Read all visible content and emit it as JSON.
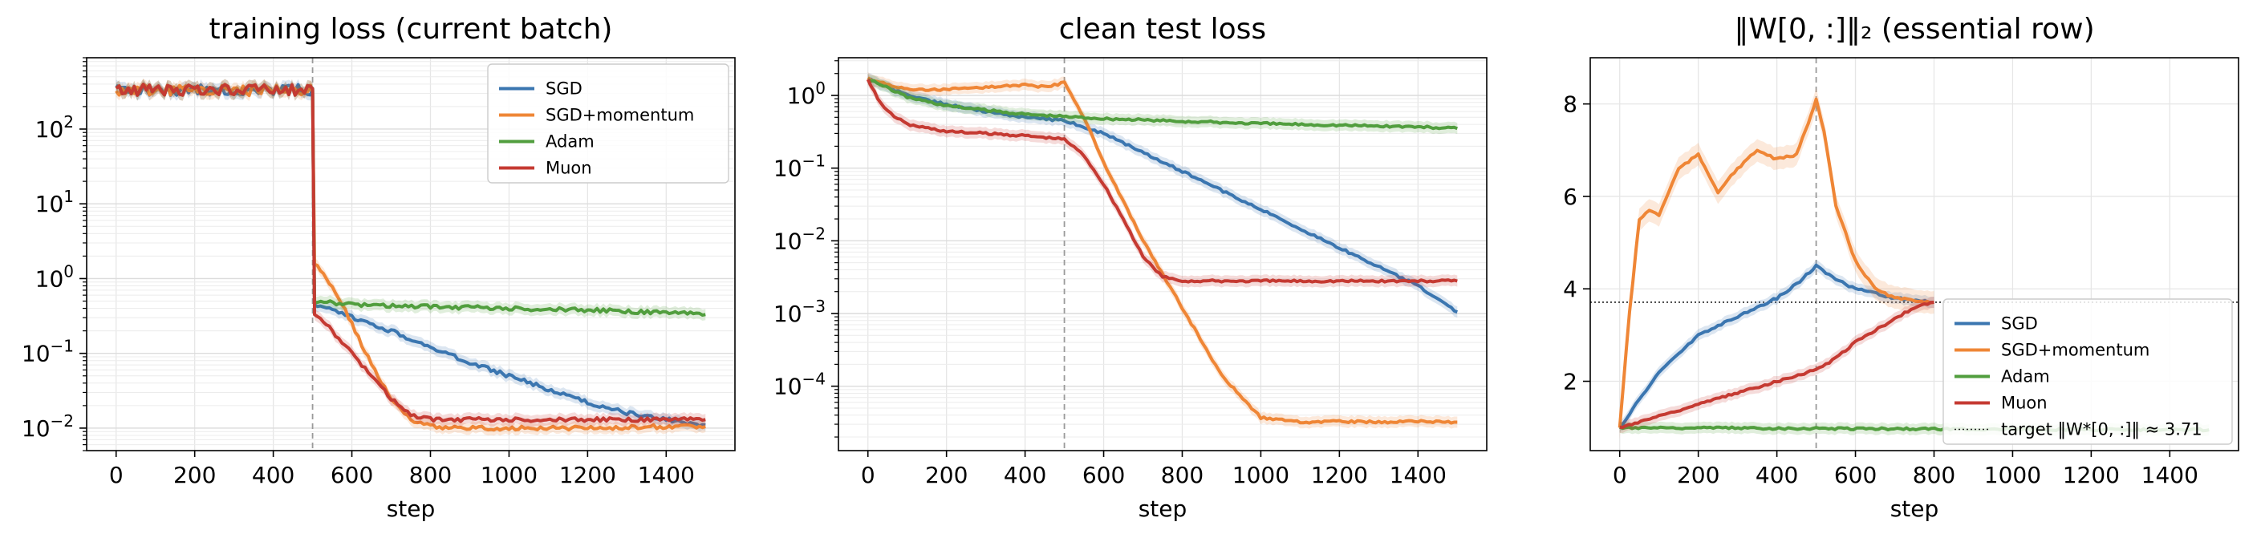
{
  "colors": {
    "SGD": "#3b76b0",
    "SGD+momentum": "#ef8636",
    "Adam": "#519e3e",
    "Muon": "#c53a32"
  },
  "chart_data": [
    {
      "type": "line",
      "title": "training loss (current batch)",
      "xlabel": "step",
      "ylabel": "",
      "yscale": "log",
      "xlim": [
        -75,
        1575
      ],
      "ylim": [
        0.005,
        900
      ],
      "xticks": [
        "0",
        "200",
        "400",
        "600",
        "800",
        "1000",
        "1200",
        "1400"
      ],
      "yticks": [
        {
          "v": 100,
          "base": "10",
          "exp": "2"
        },
        {
          "v": 10,
          "base": "10",
          "exp": "1"
        },
        {
          "v": 1,
          "base": "10",
          "exp": "0"
        },
        {
          "v": 0.1,
          "base": "10",
          "exp": "−1"
        },
        {
          "v": 0.01,
          "base": "10",
          "exp": "−2"
        }
      ],
      "vline": 500,
      "grid": true,
      "legend": {
        "position": "top-right",
        "entries": [
          "SGD",
          "SGD+momentum",
          "Adam",
          "Muon"
        ]
      },
      "series": [
        {
          "name": "SGD",
          "x": [
            0,
            100,
            200,
            300,
            400,
            495,
            500,
            505,
            550,
            600,
            700,
            800,
            900,
            1000,
            1100,
            1200,
            1300,
            1400,
            1500
          ],
          "y": [
            330,
            340,
            330,
            335,
            330,
            330,
            330,
            0.42,
            0.38,
            0.3,
            0.2,
            0.12,
            0.075,
            0.05,
            0.033,
            0.022,
            0.016,
            0.013,
            0.011
          ]
        },
        {
          "name": "SGD+momentum",
          "x": [
            0,
            100,
            200,
            300,
            400,
            495,
            500,
            505,
            550,
            600,
            650,
            700,
            750,
            800,
            900,
            1000,
            1200,
            1400,
            1500
          ],
          "y": [
            330,
            340,
            330,
            335,
            330,
            330,
            330,
            1.6,
            0.8,
            0.25,
            0.07,
            0.025,
            0.013,
            0.0105,
            0.01,
            0.01,
            0.01,
            0.0105,
            0.0105
          ]
        },
        {
          "name": "Adam",
          "x": [
            0,
            100,
            200,
            300,
            400,
            495,
            500,
            505,
            600,
            800,
            1000,
            1200,
            1400,
            1500
          ],
          "y": [
            330,
            340,
            330,
            335,
            330,
            330,
            330,
            0.5,
            0.45,
            0.42,
            0.4,
            0.38,
            0.35,
            0.33
          ]
        },
        {
          "name": "Muon",
          "x": [
            0,
            100,
            200,
            300,
            400,
            495,
            500,
            505,
            550,
            600,
            650,
            700,
            750,
            800,
            900,
            1000,
            1200,
            1400,
            1500
          ],
          "y": [
            330,
            340,
            330,
            335,
            330,
            330,
            330,
            0.35,
            0.2,
            0.1,
            0.05,
            0.025,
            0.015,
            0.013,
            0.013,
            0.013,
            0.013,
            0.013,
            0.013
          ]
        }
      ]
    },
    {
      "type": "line",
      "title": "clean test loss",
      "xlabel": "step",
      "ylabel": "",
      "yscale": "log",
      "xlim": [
        -75,
        1575
      ],
      "ylim": [
        1.3e-05,
        3.3
      ],
      "xticks": [
        "0",
        "200",
        "400",
        "600",
        "800",
        "1000",
        "1200",
        "1400"
      ],
      "yticks": [
        {
          "v": 1,
          "base": "10",
          "exp": "0"
        },
        {
          "v": 0.1,
          "base": "10",
          "exp": "−1"
        },
        {
          "v": 0.01,
          "base": "10",
          "exp": "−2"
        },
        {
          "v": 0.001,
          "base": "10",
          "exp": "−3"
        },
        {
          "v": 0.0001,
          "base": "10",
          "exp": "−4"
        }
      ],
      "vline": 500,
      "grid": true,
      "series": [
        {
          "name": "SGD",
          "x": [
            0,
            100,
            200,
            300,
            400,
            500,
            600,
            800,
            1000,
            1200,
            1400,
            1500
          ],
          "y": [
            1.7,
            1.0,
            0.75,
            0.6,
            0.5,
            0.45,
            0.3,
            0.09,
            0.027,
            0.008,
            0.0024,
            0.00105
          ]
        },
        {
          "name": "SGD+momentum",
          "x": [
            0,
            100,
            200,
            300,
            400,
            450,
            500,
            550,
            600,
            700,
            800,
            900,
            1000,
            1100,
            1200,
            1300,
            1400,
            1500
          ],
          "y": [
            1.7,
            1.2,
            1.2,
            1.3,
            1.4,
            1.3,
            1.5,
            0.5,
            0.12,
            0.01,
            0.0012,
            0.00014,
            3.7e-05,
            3.2e-05,
            3.3e-05,
            3.2e-05,
            3.3e-05,
            3.2e-05
          ]
        },
        {
          "name": "Adam",
          "x": [
            0,
            100,
            200,
            400,
            600,
            800,
            1000,
            1200,
            1400,
            1500
          ],
          "y": [
            1.7,
            0.95,
            0.72,
            0.55,
            0.48,
            0.44,
            0.41,
            0.39,
            0.37,
            0.35
          ]
        },
        {
          "name": "Muon",
          "x": [
            0,
            25,
            50,
            100,
            200,
            300,
            400,
            500,
            550,
            600,
            650,
            700,
            750,
            800,
            900,
            1000,
            1100,
            1200,
            1300,
            1400,
            1500
          ],
          "y": [
            1.7,
            0.9,
            0.6,
            0.4,
            0.32,
            0.3,
            0.28,
            0.25,
            0.15,
            0.06,
            0.02,
            0.006,
            0.0032,
            0.0028,
            0.0028,
            0.0028,
            0.0028,
            0.0028,
            0.0028,
            0.0028,
            0.0028
          ]
        }
      ]
    },
    {
      "type": "line",
      "title": "‖W[0, :]‖₂  (essential row)",
      "xlabel": "step",
      "ylabel": "",
      "yscale": "linear",
      "xlim": [
        -75,
        1575
      ],
      "ylim": [
        0.5,
        9.0
      ],
      "xticks": [
        "0",
        "200",
        "400",
        "600",
        "800",
        "1000",
        "1200",
        "1400"
      ],
      "yticks": [
        {
          "v": 2,
          "label": "2"
        },
        {
          "v": 4,
          "label": "4"
        },
        {
          "v": 6,
          "label": "6"
        },
        {
          "v": 8,
          "label": "8"
        }
      ],
      "vline": 500,
      "hline": 3.71,
      "grid": true,
      "legend": {
        "position": "lower-right",
        "entries": [
          "SGD",
          "SGD+momentum",
          "Adam",
          "Muon"
        ],
        "extra": "target ‖W*[0, :]‖ ≈ 3.71"
      },
      "series": [
        {
          "name": "SGD",
          "x": [
            0,
            50,
            100,
            150,
            200,
            250,
            300,
            350,
            400,
            450,
            500,
            550,
            600,
            700,
            800
          ],
          "y": [
            1.0,
            1.6,
            2.2,
            2.6,
            3.0,
            3.2,
            3.4,
            3.6,
            3.8,
            4.1,
            4.5,
            4.2,
            4.0,
            3.8,
            3.71
          ]
        },
        {
          "name": "SGD+momentum",
          "x": [
            0,
            25,
            50,
            75,
            100,
            150,
            200,
            250,
            300,
            350,
            400,
            450,
            480,
            500,
            520,
            550,
            600,
            650,
            700,
            750,
            800
          ],
          "y": [
            1.0,
            3.5,
            5.5,
            5.7,
            5.6,
            6.6,
            6.9,
            6.1,
            6.6,
            7.0,
            6.8,
            6.9,
            7.6,
            8.1,
            7.4,
            5.8,
            4.6,
            4.0,
            3.8,
            3.75,
            3.71
          ]
        },
        {
          "name": "Adam",
          "x": [
            0,
            500,
            1000,
            1500
          ],
          "y": [
            1.0,
            0.98,
            0.96,
            0.95
          ]
        },
        {
          "name": "Muon",
          "x": [
            0,
            100,
            200,
            300,
            400,
            500,
            550,
            600,
            650,
            700,
            750,
            800
          ],
          "y": [
            1.0,
            1.25,
            1.5,
            1.75,
            2.0,
            2.25,
            2.5,
            2.85,
            3.1,
            3.35,
            3.6,
            3.71
          ]
        }
      ]
    }
  ]
}
